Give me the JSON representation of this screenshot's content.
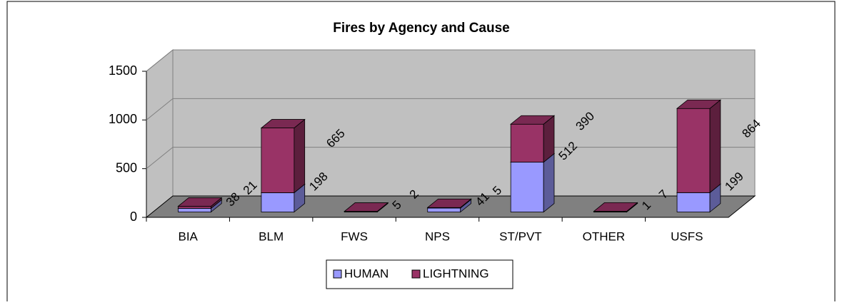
{
  "chart_data": {
    "type": "bar3d_stacked",
    "title": "Fires by Agency and Cause",
    "categories": [
      "BIA",
      "BLM",
      "FWS",
      "NPS",
      "ST/PVT",
      "OTHER",
      "USFS"
    ],
    "series": [
      {
        "name": "HUMAN",
        "color": "#9999ff",
        "values": [
          38,
          198,
          5,
          41,
          512,
          1,
          199
        ]
      },
      {
        "name": "LIGHTNING",
        "color": "#993366",
        "values": [
          21,
          665,
          2,
          5,
          390,
          7,
          864
        ]
      }
    ],
    "ylim": [
      0,
      1500
    ],
    "yticks": [
      0,
      500,
      1000,
      1500
    ],
    "grid": true,
    "legend": "bottom"
  }
}
